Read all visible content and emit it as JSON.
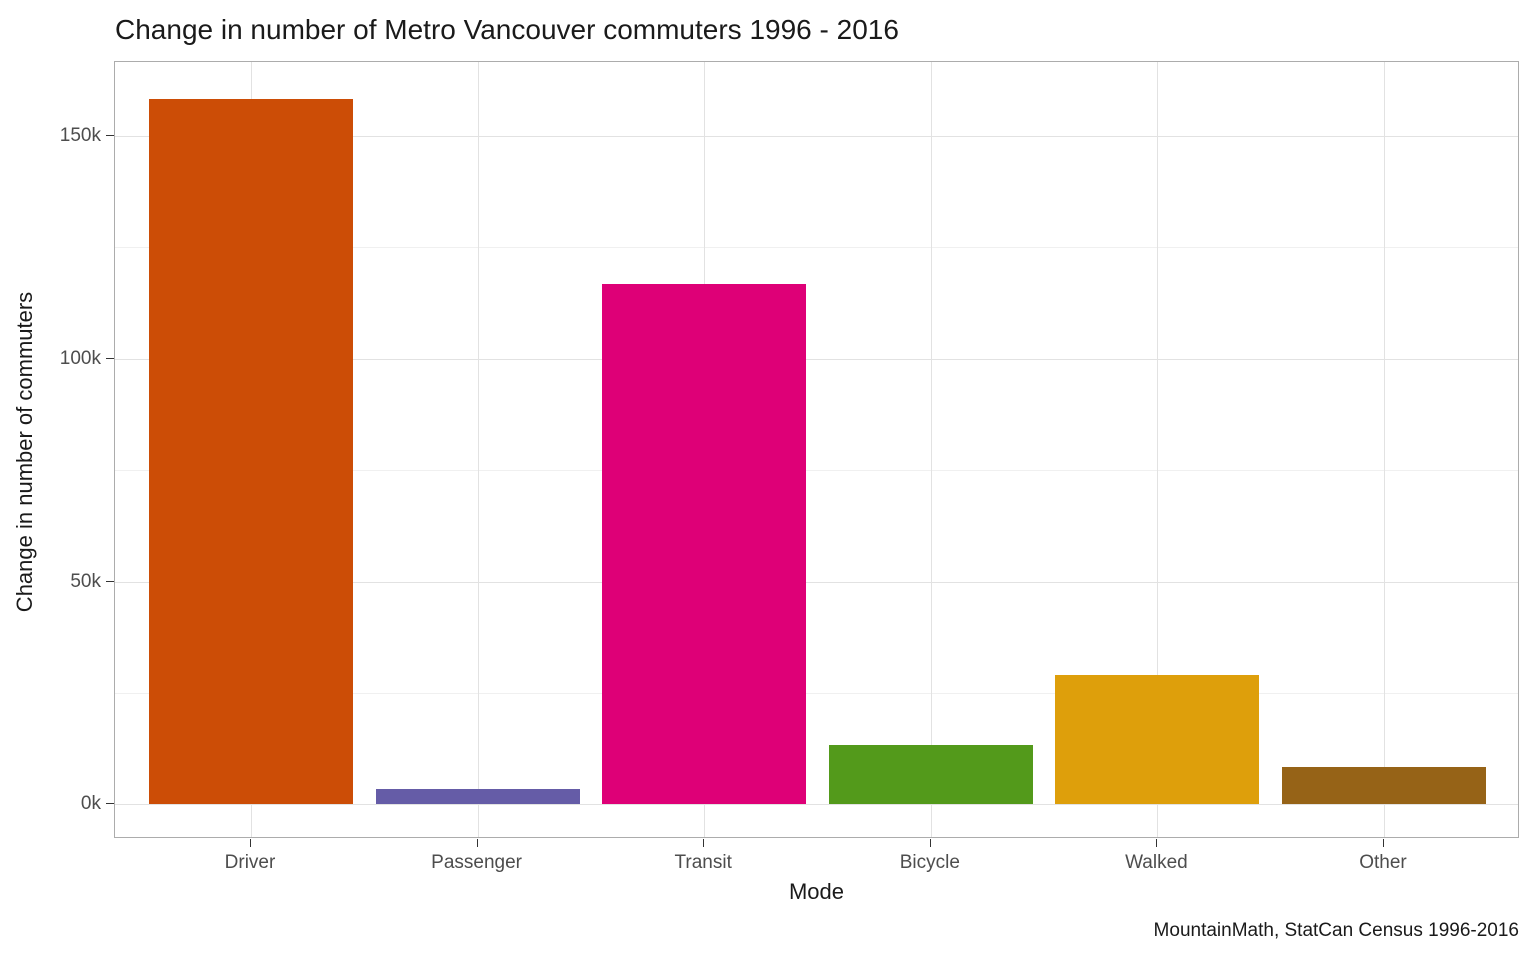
{
  "chart_data": {
    "type": "bar",
    "title": "Change in number of Metro Vancouver commuters 1996 - 2016",
    "xlabel": "Mode",
    "ylabel": "Change in number of commuters",
    "caption": "MountainMath, StatCan Census 1996-2016",
    "categories": [
      "Driver",
      "Passenger",
      "Transit",
      "Bicycle",
      "Walked",
      "Other"
    ],
    "values": [
      158400,
      3400,
      116700,
      13300,
      29100,
      8400
    ],
    "bar_colors": [
      "#cc4d06",
      "#655ca7",
      "#de0077",
      "#539a1b",
      "#de9f0b",
      "#966317"
    ],
    "ylim": [
      -7800,
      166600
    ],
    "y_major_ticks": [
      {
        "value": 0,
        "label": "0k"
      },
      {
        "value": 50000,
        "label": "50k"
      },
      {
        "value": 100000,
        "label": "100k"
      },
      {
        "value": 150000,
        "label": "150k"
      }
    ],
    "y_minor_ticks": [
      25000,
      75000,
      125000
    ],
    "grid": "horizontal major+minor, vertical major at category centers",
    "legend": "none",
    "colors": {
      "background": "#ffffff",
      "panel_border": "#acacac",
      "grid_major": "#e2e2e2",
      "grid_minor": "#f0f0f0",
      "tick_mark": "#333333",
      "tick_label": "#4d4d4d",
      "text": "#1a1a1a"
    }
  }
}
